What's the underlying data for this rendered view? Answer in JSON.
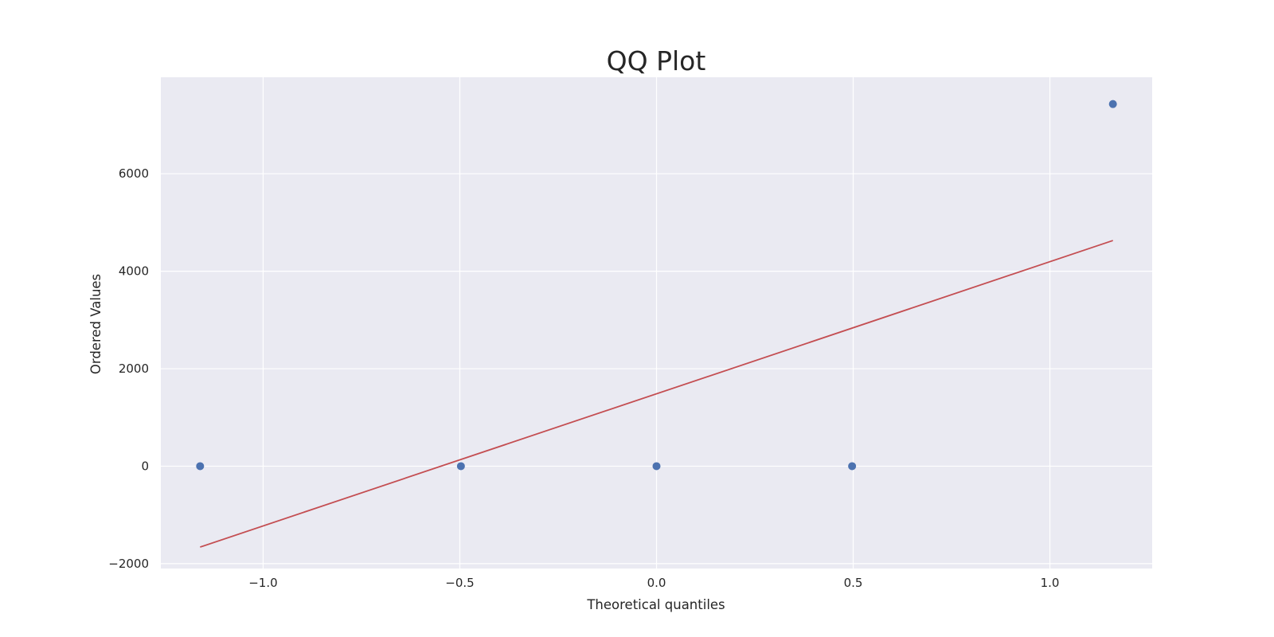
{
  "chart_data": {
    "type": "scatter",
    "title": "QQ Plot",
    "xlabel": "Theoretical quantiles",
    "ylabel": "Ordered Values",
    "xlim": [
      -1.26,
      1.26
    ],
    "ylim": [
      -2100,
      7980
    ],
    "grid": true,
    "x_ticks": [
      -1.0,
      -0.5,
      0.0,
      0.5,
      1.0
    ],
    "x_tick_labels": [
      "−1.0",
      "−0.5",
      "0.0",
      "0.5",
      "1.0"
    ],
    "y_ticks": [
      -2000,
      0,
      2000,
      4000,
      6000
    ],
    "y_tick_labels": [
      "−2000",
      "0",
      "2000",
      "4000",
      "6000"
    ],
    "series": [
      {
        "kind": "points",
        "color": "#4c72b0",
        "x": [
          -1.1602,
          -0.4972,
          0.0,
          0.4972,
          1.1602
        ],
        "y": [
          0,
          0,
          0,
          0,
          7430
        ]
      },
      {
        "kind": "fit-line",
        "color": "#c44e52",
        "x": [
          -1.1602,
          1.1602
        ],
        "y": [
          -1660,
          4630
        ]
      }
    ],
    "background": "#eaeaf2",
    "grid_color": "#ffffff"
  }
}
